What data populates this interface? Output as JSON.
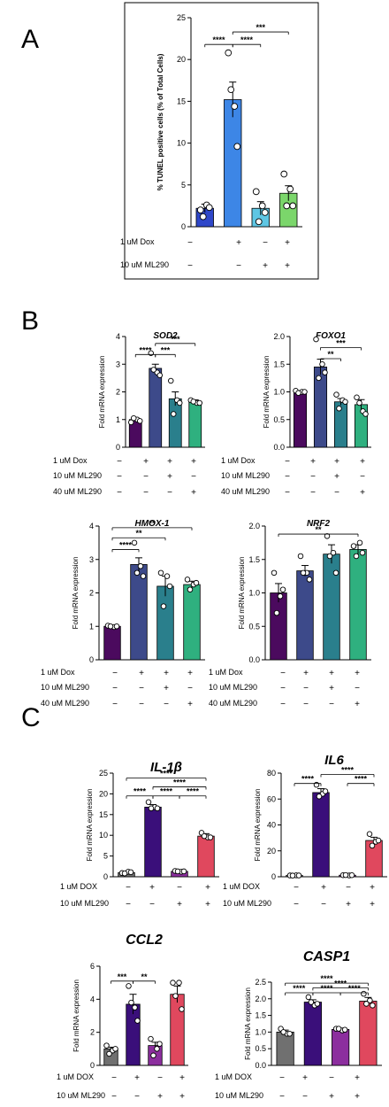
{
  "panel_letters": [
    "A",
    "B",
    "C"
  ],
  "chart_data": [
    {
      "id": "A",
      "type": "bar",
      "title": "",
      "ylabel": "% TUNEL positive cells (% of Total Cells)",
      "ylim": [
        0,
        25
      ],
      "yticks": [
        0,
        5,
        10,
        15,
        20,
        25
      ],
      "colors": [
        "#2f47c9",
        "#3d86e6",
        "#5ec6e3",
        "#7bd66b"
      ],
      "values": [
        2.2,
        15.2,
        2.2,
        4.0
      ],
      "errors": [
        0.5,
        2.1,
        0.8,
        0.9
      ],
      "points": [
        [
          2.0,
          2.6,
          1.2,
          2.3
        ],
        [
          20.8,
          14.4,
          16.4,
          9.6
        ],
        [
          4.2,
          2.5,
          0.6,
          1.7
        ],
        [
          6.3,
          4.5,
          2.5,
          2.5
        ]
      ],
      "conditions": [
        {
          "label": "1 uM Dox",
          "signs": [
            "−",
            "+",
            "−",
            "+"
          ]
        },
        {
          "label": "10 uM ML290",
          "signs": [
            "−",
            "−",
            "+",
            "+"
          ]
        }
      ],
      "significance": [
        {
          "from": 0,
          "to": 1,
          "y": 21.8,
          "label": "****"
        },
        {
          "from": 1,
          "to": 2,
          "y": 21.8,
          "label": "****"
        },
        {
          "from": 1,
          "to": 3,
          "y": 23.3,
          "label": "***"
        }
      ]
    },
    {
      "id": "B1",
      "type": "bar",
      "title": "SOD2",
      "ylabel": "Fold mRNA expression",
      "ylim": [
        0,
        4
      ],
      "yticks": [
        "0",
        "1",
        "2",
        "3",
        "4"
      ],
      "colors": [
        "#4b0a5e",
        "#3d4a8a",
        "#2a7f8c",
        "#2fb07f"
      ],
      "values": [
        1.0,
        2.85,
        1.75,
        1.65
      ],
      "errors": [
        0.05,
        0.15,
        0.25,
        0.06
      ],
      "points": [
        [
          0.9,
          1.0,
          1.05,
          0.95
        ],
        [
          3.4,
          2.7,
          2.8,
          2.6
        ],
        [
          2.4,
          1.7,
          1.2,
          1.6
        ],
        [
          1.7,
          1.6,
          1.65,
          1.6
        ]
      ],
      "conditions": [
        {
          "label": "1 uM Dox",
          "signs": [
            "−",
            "+",
            "+",
            "+"
          ]
        },
        {
          "label": "10 uM ML290",
          "signs": [
            "−",
            "−",
            "+",
            "−"
          ]
        },
        {
          "label": "40 uM ML290",
          "signs": [
            "−",
            "−",
            "−",
            "+"
          ]
        }
      ],
      "significance": [
        {
          "from": 0,
          "to": 1,
          "y": 3.35,
          "label": "****"
        },
        {
          "from": 1,
          "to": 2,
          "y": 3.35,
          "label": "***"
        },
        {
          "from": 1,
          "to": 3,
          "y": 3.75,
          "label": "***"
        }
      ]
    },
    {
      "id": "B2",
      "type": "bar",
      "title": "FOXO1",
      "ylabel": "Fold mRNA expression",
      "ylim": [
        0,
        2
      ],
      "yticks": [
        "0.0",
        "0.5",
        "1.0",
        "1.5",
        "2.0"
      ],
      "colors": [
        "#4b0a5e",
        "#3d4a8a",
        "#2a7f8c",
        "#2fb07f"
      ],
      "values": [
        1.0,
        1.45,
        0.82,
        0.77
      ],
      "errors": [
        0.02,
        0.14,
        0.06,
        0.09
      ],
      "points": [
        [
          1.02,
          1.0,
          0.98,
          1.0
        ],
        [
          1.95,
          1.5,
          1.25,
          1.35
        ],
        [
          0.95,
          0.85,
          0.7,
          0.82
        ],
        [
          0.9,
          0.65,
          0.8,
          0.6
        ]
      ],
      "conditions": [
        {
          "label": "1 uM Dox",
          "signs": [
            "−",
            "+",
            "+",
            "+"
          ]
        },
        {
          "label": "10 uM ML290",
          "signs": [
            "−",
            "−",
            "+",
            "−"
          ]
        },
        {
          "label": "40 uM ML290",
          "signs": [
            "−",
            "−",
            "−",
            "+"
          ]
        }
      ],
      "significance": [
        {
          "from": 1,
          "to": 2,
          "y": 1.6,
          "label": "**"
        },
        {
          "from": 1,
          "to": 3,
          "y": 1.8,
          "label": "***"
        }
      ]
    },
    {
      "id": "B3",
      "type": "bar",
      "title": "HMOX-1",
      "ylabel": "Fold mRNA expression",
      "ylim": [
        0,
        4
      ],
      "yticks": [
        "0",
        "1",
        "2",
        "3",
        "4"
      ],
      "colors": [
        "#4b0a5e",
        "#3d4a8a",
        "#2a7f8c",
        "#2fb07f"
      ],
      "values": [
        1.0,
        2.85,
        2.2,
        2.25
      ],
      "errors": [
        0.03,
        0.2,
        0.3,
        0.1
      ],
      "points": [
        [
          1.02,
          0.98,
          1.0,
          1.0
        ],
        [
          3.5,
          2.8,
          2.6,
          2.5
        ],
        [
          2.6,
          2.5,
          1.6,
          2.2
        ],
        [
          2.4,
          2.25,
          2.1,
          2.3
        ]
      ],
      "conditions": [
        {
          "label": "1 uM Dox",
          "signs": [
            "−",
            "+",
            "+",
            "+"
          ]
        },
        {
          "label": "10 uM ML290",
          "signs": [
            "−",
            "−",
            "+",
            "−"
          ]
        },
        {
          "label": "40 uM ML290",
          "signs": [
            "−",
            "−",
            "−",
            "+"
          ]
        }
      ],
      "significance": [
        {
          "from": 0,
          "to": 1,
          "y": 3.3,
          "label": "****"
        },
        {
          "from": 0,
          "to": 2,
          "y": 3.65,
          "label": "**"
        },
        {
          "from": 0,
          "to": 3,
          "y": 3.95,
          "label": "**"
        }
      ]
    },
    {
      "id": "B4",
      "type": "bar",
      "title": "NRF2",
      "ylabel": "Fold mRNA expression",
      "ylim": [
        0,
        2
      ],
      "yticks": [
        "0.0",
        "0.5",
        "1.0",
        "1.5",
        "2.0"
      ],
      "colors": [
        "#4b0a5e",
        "#3d4a8a",
        "#2a7f8c",
        "#2fb07f"
      ],
      "values": [
        1.0,
        1.33,
        1.58,
        1.65
      ],
      "errors": [
        0.14,
        0.08,
        0.14,
        0.07
      ],
      "points": [
        [
          1.3,
          0.95,
          0.7,
          1.05
        ],
        [
          1.55,
          1.3,
          1.3,
          1.2
        ],
        [
          1.85,
          1.6,
          1.55,
          1.3
        ],
        [
          1.7,
          1.75,
          1.55,
          1.6
        ]
      ],
      "conditions": [
        {
          "label": "1 uM Dox",
          "signs": [
            "−",
            "+",
            "+",
            "+"
          ]
        },
        {
          "label": "10 uM ML290",
          "signs": [
            "−",
            "−",
            "+",
            "−"
          ]
        },
        {
          "label": "40 uM ML290",
          "signs": [
            "−",
            "−",
            "−",
            "+"
          ]
        }
      ],
      "significance": [
        {
          "from": 0,
          "to": 3,
          "y": 1.88,
          "label": "**"
        }
      ]
    },
    {
      "id": "C1",
      "type": "bar",
      "title": "IL-1β",
      "ylabel": "Fold mRNA expression",
      "ylim": [
        0,
        25
      ],
      "yticks": [
        "0",
        "5",
        "10",
        "15",
        "20",
        "25"
      ],
      "colors": [
        "#707070",
        "#3a0f7a",
        "#8c2e9e",
        "#e0485e"
      ],
      "values": [
        1.0,
        16.8,
        1.3,
        9.8
      ],
      "errors": [
        0.2,
        0.6,
        0.1,
        0.6
      ],
      "points": [
        [
          0.9,
          1.2,
          0.8,
          1.1
        ],
        [
          18.0,
          16.8,
          16.5,
          16.5
        ],
        [
          1.4,
          1.2,
          1.3,
          1.3
        ],
        [
          10.6,
          9.5,
          9.8,
          9.5
        ]
      ],
      "conditions": [
        {
          "label": "1 uM DOX",
          "signs": [
            "−",
            "+",
            "−",
            "+"
          ]
        },
        {
          "label": "10 uM ML290",
          "signs": [
            "−",
            "−",
            "+",
            "+"
          ]
        }
      ],
      "significance": [
        {
          "from": 0,
          "to": 1,
          "y": 19.5,
          "label": "****"
        },
        {
          "from": 1,
          "to": 2,
          "y": 19.5,
          "label": "****"
        },
        {
          "from": 2,
          "to": 3,
          "y": 19.5,
          "label": "****"
        },
        {
          "from": 1,
          "to": 3,
          "y": 21.7,
          "label": "****"
        },
        {
          "from": 0,
          "to": 3,
          "y": 23.8,
          "label": "****"
        }
      ]
    },
    {
      "id": "C2",
      "type": "bar",
      "title": "IL6",
      "ylabel": "Fold mRNA expression",
      "ylim": [
        0,
        80
      ],
      "yticks": [
        "0",
        "20",
        "40",
        "60",
        "80"
      ],
      "colors": [
        "#707070",
        "#3a0f7a",
        "#8c2e9e",
        "#e0485e"
      ],
      "values": [
        1.0,
        65.0,
        1.2,
        28.0
      ],
      "errors": [
        0.2,
        3.0,
        0.2,
        2.5
      ],
      "points": [
        [
          1.0,
          1.1,
          0.9,
          1.0
        ],
        [
          71.0,
          64.0,
          62.0,
          66.0
        ],
        [
          1.2,
          1.0,
          1.3,
          1.2
        ],
        [
          33.0,
          27.0,
          24.0,
          28.0
        ]
      ],
      "conditions": [
        {
          "label": "1 uM DOX",
          "signs": [
            "−",
            "+",
            "−",
            "+"
          ]
        },
        {
          "label": "10 uM ML290",
          "signs": [
            "−",
            "−",
            "+",
            "+"
          ]
        }
      ],
      "significance": [
        {
          "from": 0,
          "to": 1,
          "y": 72.0,
          "label": "****"
        },
        {
          "from": 2,
          "to": 3,
          "y": 72.0,
          "label": "****"
        },
        {
          "from": 1,
          "to": 3,
          "y": 79.0,
          "label": "****"
        }
      ]
    },
    {
      "id": "C3",
      "type": "bar",
      "title": "CCL2",
      "ylabel": "Fold mRNA expression",
      "ylim": [
        0,
        6
      ],
      "yticks": [
        "0",
        "2",
        "4",
        "6"
      ],
      "colors": [
        "#707070",
        "#3a0f7a",
        "#8c2e9e",
        "#e0485e"
      ],
      "values": [
        1.0,
        3.7,
        1.2,
        4.3
      ],
      "errors": [
        0.1,
        0.6,
        0.2,
        0.5
      ],
      "points": [
        [
          1.2,
          0.9,
          0.7,
          1.0
        ],
        [
          4.8,
          3.5,
          3.8,
          2.7
        ],
        [
          1.6,
          1.0,
          0.6,
          1.3
        ],
        [
          5.0,
          5.0,
          4.2,
          3.4
        ]
      ],
      "conditions": [
        {
          "label": "1 uM DOX",
          "signs": [
            "−",
            "+",
            "−",
            "+"
          ]
        },
        {
          "label": "10 uM ML290",
          "signs": [
            "−",
            "−",
            "+",
            "+"
          ]
        }
      ],
      "significance": [
        {
          "from": 0,
          "to": 1,
          "y": 5.1,
          "label": "***"
        },
        {
          "from": 1,
          "to": 2,
          "y": 5.1,
          "label": "**"
        }
      ]
    },
    {
      "id": "C4",
      "type": "bar",
      "title": "CASP1",
      "ylabel": "Fold mRNA expression",
      "ylim": [
        0,
        2.5
      ],
      "yticks": [
        "0.0",
        "0.5",
        "1.0",
        "1.5",
        "2.0",
        "2.5"
      ],
      "colors": [
        "#707070",
        "#3a0f7a",
        "#8c2e9e",
        "#e0485e"
      ],
      "values": [
        1.0,
        1.9,
        1.08,
        1.93
      ],
      "errors": [
        0.06,
        0.07,
        0.03,
        0.11
      ],
      "points": [
        [
          1.1,
          0.95,
          1.0,
          0.95
        ],
        [
          2.05,
          1.8,
          1.9,
          1.85
        ],
        [
          1.1,
          1.05,
          1.1,
          1.07
        ],
        [
          2.15,
          1.95,
          1.85,
          1.8
        ]
      ],
      "conditions": [
        {
          "label": "1 uM DOX",
          "signs": [
            "−",
            "+",
            "−",
            "+"
          ]
        },
        {
          "label": "10 uM ML290",
          "signs": [
            "−",
            "−",
            "+",
            "+"
          ]
        }
      ],
      "significance": [
        {
          "from": 0,
          "to": 1,
          "y": 2.18,
          "label": "****"
        },
        {
          "from": 1,
          "to": 2,
          "y": 2.18,
          "label": "****"
        },
        {
          "from": 2,
          "to": 3,
          "y": 2.18,
          "label": "****"
        },
        {
          "from": 1,
          "to": 3,
          "y": 2.33,
          "label": "****"
        },
        {
          "from": 0,
          "to": 3,
          "y": 2.47,
          "label": "****"
        }
      ]
    }
  ]
}
